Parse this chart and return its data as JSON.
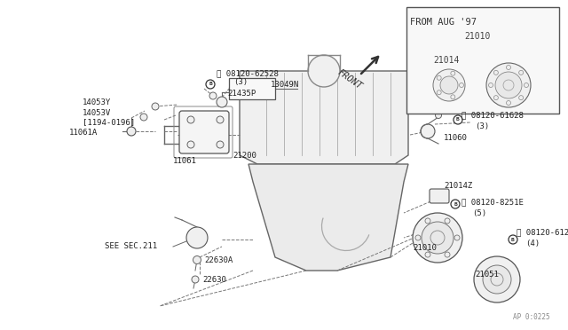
{
  "bg_color": "#ffffff",
  "line_color": "#555555",
  "text_color": "#222222",
  "watermark": "AP 0:0225",
  "inset_label_from": "FROM AUG '97",
  "inset_part1": "21010",
  "inset_part2": "21014",
  "front_label": "FRONT"
}
